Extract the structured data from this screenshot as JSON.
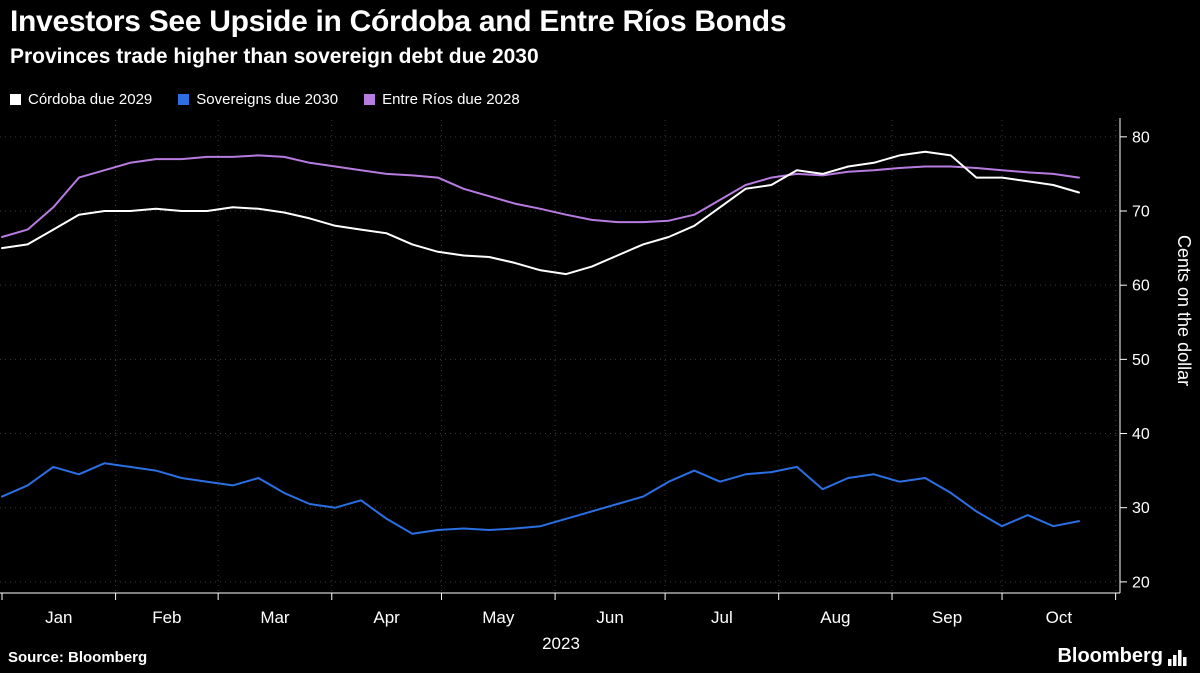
{
  "header": {
    "title": "Investors See Upside in Córdoba and Entre Ríos Bonds",
    "subtitle": "Provinces trade higher than sovereign debt due 2030"
  },
  "legend": [
    {
      "label": "Córdoba due 2029",
      "color": "#ffffff"
    },
    {
      "label": "Sovereigns due 2030",
      "color": "#2b6fe3"
    },
    {
      "label": "Entre Ríos due 2028",
      "color": "#b87be0"
    }
  ],
  "footer": {
    "source": "Source: Bloomberg",
    "brand": "Bloomberg"
  },
  "chart_data": {
    "type": "line",
    "title": "Investors See Upside in Córdoba and Entre Ríos Bonds",
    "subtitle": "Provinces trade higher than sovereign debt due 2030",
    "ylabel": "Cents on the dollar",
    "ylim": [
      18.5,
      82
    ],
    "yticks": [
      20,
      30,
      40,
      50,
      60,
      70,
      80
    ],
    "grid": true,
    "axis_side": "right",
    "legend_position": "top-left",
    "grid_color": "#3b3b3f",
    "axis_color": "#ffffff",
    "x_axis": {
      "year_label": "2023",
      "month_labels": [
        "Jan",
        "Feb",
        "Mar",
        "Apr",
        "May",
        "Jun",
        "Jul",
        "Aug",
        "Sep",
        "Oct"
      ],
      "month_boundaries_weeks": [
        0,
        4.43,
        8.43,
        12.86,
        17.14,
        21.57,
        25.86,
        30.29,
        34.71,
        39.0,
        43.43
      ]
    },
    "x_unit": "weeks since Jan 1, 2023",
    "x_weeks": [
      0,
      1,
      2,
      3,
      4,
      5,
      6,
      7,
      8,
      9,
      10,
      11,
      12,
      13,
      14,
      15,
      16,
      17,
      18,
      19,
      20,
      21,
      22,
      23,
      24,
      25,
      26,
      27,
      28,
      29,
      30,
      31,
      32,
      33,
      34,
      35,
      36,
      37,
      38,
      39,
      40,
      41,
      42
    ],
    "series": [
      {
        "name": "Córdoba due 2029",
        "color": "#ffffff",
        "values": [
          65.0,
          65.5,
          67.5,
          69.5,
          70.0,
          70.0,
          70.3,
          70.0,
          70.0,
          70.5,
          70.3,
          69.8,
          69.0,
          68.0,
          67.5,
          67.0,
          65.5,
          64.5,
          64.0,
          63.8,
          63.0,
          62.0,
          61.5,
          62.5,
          64.0,
          65.5,
          66.5,
          68.0,
          70.5,
          73.0,
          73.5,
          75.5,
          75.0,
          76.0,
          76.5,
          77.5,
          78.0,
          77.5,
          74.5,
          74.5,
          74.0,
          73.5,
          72.5
        ]
      },
      {
        "name": "Sovereigns due 2030",
        "color": "#2b6fe3",
        "values": [
          31.5,
          33.0,
          35.5,
          34.5,
          36.0,
          35.5,
          35.0,
          34.0,
          33.5,
          33.0,
          34.0,
          32.0,
          30.5,
          30.0,
          31.0,
          28.5,
          26.5,
          27.0,
          27.2,
          27.0,
          27.2,
          27.5,
          28.5,
          29.5,
          30.5,
          31.5,
          33.5,
          35.0,
          33.5,
          34.5,
          34.8,
          35.5,
          32.5,
          34.0,
          34.5,
          33.5,
          34.0,
          32.0,
          29.5,
          27.5,
          29.0,
          27.5,
          28.2
        ]
      },
      {
        "name": "Entre Ríos due 2028",
        "color": "#b87be0",
        "values": [
          66.5,
          67.5,
          70.5,
          74.5,
          75.5,
          76.5,
          77.0,
          77.0,
          77.3,
          77.3,
          77.5,
          77.3,
          76.5,
          76.0,
          75.5,
          75.0,
          74.8,
          74.5,
          73.0,
          72.0,
          71.0,
          70.3,
          69.5,
          68.8,
          68.5,
          68.5,
          68.7,
          69.5,
          71.5,
          73.5,
          74.5,
          75.0,
          74.8,
          75.3,
          75.5,
          75.8,
          76.0,
          76.0,
          75.8,
          75.5,
          75.2,
          75.0,
          74.5
        ]
      }
    ]
  }
}
